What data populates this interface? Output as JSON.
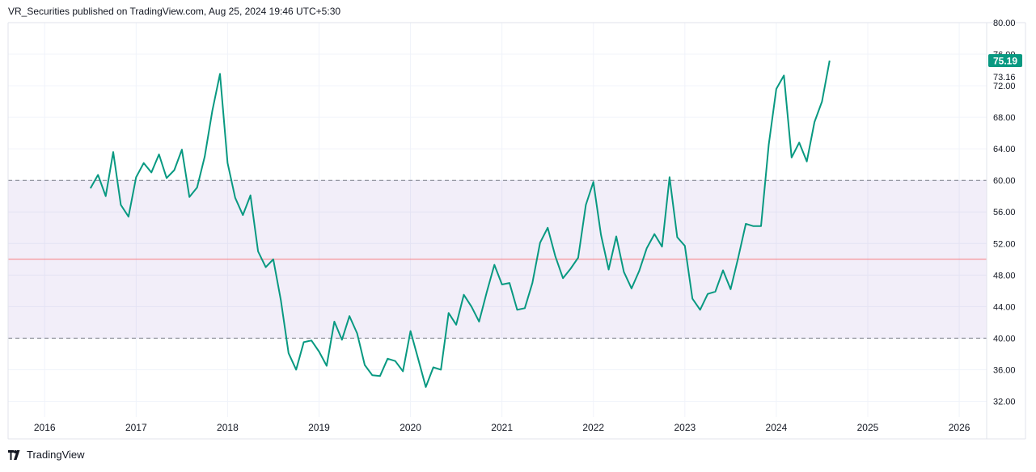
{
  "header": {
    "publisher_line": "VR_Securities published on TradingView.com, Aug 25, 2024 19:46 UTC+5:30"
  },
  "footer": {
    "brand": "TradingView",
    "logo_icon": "tradingview-logo-icon"
  },
  "colors": {
    "series": "#089981",
    "band_fill": "#7e57c2",
    "band_line": "#787b86",
    "mid_line": "#f77c80",
    "grid": "#f0f3fa",
    "axis_text": "#131722",
    "badge": "#089981"
  },
  "chart_data": {
    "type": "line",
    "series": [
      {
        "x": [
          2016.5,
          2016.583,
          2016.667,
          2016.75,
          2016.833,
          2016.917,
          2017.0,
          2017.083,
          2017.167,
          2017.25,
          2017.333,
          2017.417,
          2017.5,
          2017.583,
          2017.667,
          2017.75,
          2017.833,
          2017.917,
          2018.0,
          2018.083,
          2018.167,
          2018.25,
          2018.333,
          2018.417,
          2018.5,
          2018.583,
          2018.667,
          2018.75,
          2018.833,
          2018.917,
          2019.0,
          2019.083,
          2019.167,
          2019.25,
          2019.333,
          2019.417,
          2019.5,
          2019.583,
          2019.667,
          2019.75,
          2019.833,
          2019.917,
          2020.0,
          2020.083,
          2020.167,
          2020.25,
          2020.333,
          2020.417,
          2020.5,
          2020.583,
          2020.667,
          2020.75,
          2020.833,
          2020.917,
          2021.0,
          2021.083,
          2021.167,
          2021.25,
          2021.333,
          2021.417,
          2021.5,
          2021.583,
          2021.667,
          2021.75,
          2021.833,
          2021.917,
          2022.0,
          2022.083,
          2022.167,
          2022.25,
          2022.333,
          2022.417,
          2022.5,
          2022.583,
          2022.667,
          2022.75,
          2022.833,
          2022.917,
          2023.0,
          2023.083,
          2023.167,
          2023.25,
          2023.333,
          2023.417,
          2023.5,
          2023.583,
          2023.667,
          2023.75,
          2023.833,
          2023.917,
          2024.0,
          2024.083,
          2024.167,
          2024.25,
          2024.333,
          2024.417,
          2024.5,
          2024.583
        ],
        "y": [
          59.0,
          60.7,
          58.0,
          63.6,
          56.9,
          55.4,
          60.4,
          62.2,
          61.0,
          63.3,
          60.3,
          61.3,
          63.9,
          57.9,
          59.1,
          63.0,
          68.8,
          73.5,
          62.2,
          57.8,
          55.6,
          58.1,
          51.0,
          49.0,
          50.0,
          44.8,
          38.1,
          36.0,
          39.5,
          39.7,
          38.3,
          36.5,
          42.1,
          39.8,
          42.8,
          40.6,
          36.6,
          35.3,
          35.2,
          37.4,
          37.1,
          35.8,
          40.9,
          37.4,
          33.8,
          36.3,
          36.0,
          43.2,
          41.7,
          45.5,
          44.0,
          42.1,
          45.8,
          49.3,
          46.8,
          47.0,
          43.6,
          43.8,
          47.0,
          52.1,
          54.0,
          50.4,
          47.6,
          48.8,
          50.2,
          56.9,
          59.8,
          53.1,
          48.7,
          52.9,
          48.4,
          46.3,
          48.5,
          51.4,
          53.2,
          51.6,
          60.4,
          52.8,
          51.7,
          45.0,
          43.6,
          45.6,
          45.9,
          48.6,
          46.2,
          50.2,
          54.5,
          54.2,
          54.2,
          64.5,
          71.6,
          73.3,
          62.9,
          64.8,
          62.4,
          67.4,
          70.0,
          75.19
        ]
      }
    ],
    "x_ticks": [
      "2016",
      "2017",
      "2018",
      "2019",
      "2020",
      "2021",
      "2022",
      "2023",
      "2024",
      "2025",
      "2026"
    ],
    "y_ticks": [
      "32.00",
      "36.00",
      "40.00",
      "44.00",
      "48.00",
      "52.00",
      "56.00",
      "60.00",
      "64.00",
      "68.00",
      "72.00",
      "76.00",
      "80.00"
    ],
    "ylim": [
      30,
      80
    ],
    "xlim": [
      2015.6,
      2026.3
    ],
    "band": {
      "upper": 60,
      "lower": 40,
      "middle": 50
    },
    "last_value_label": "75.19",
    "marker_label": "73.16",
    "marker_label_value": 73.16,
    "grid": true
  }
}
